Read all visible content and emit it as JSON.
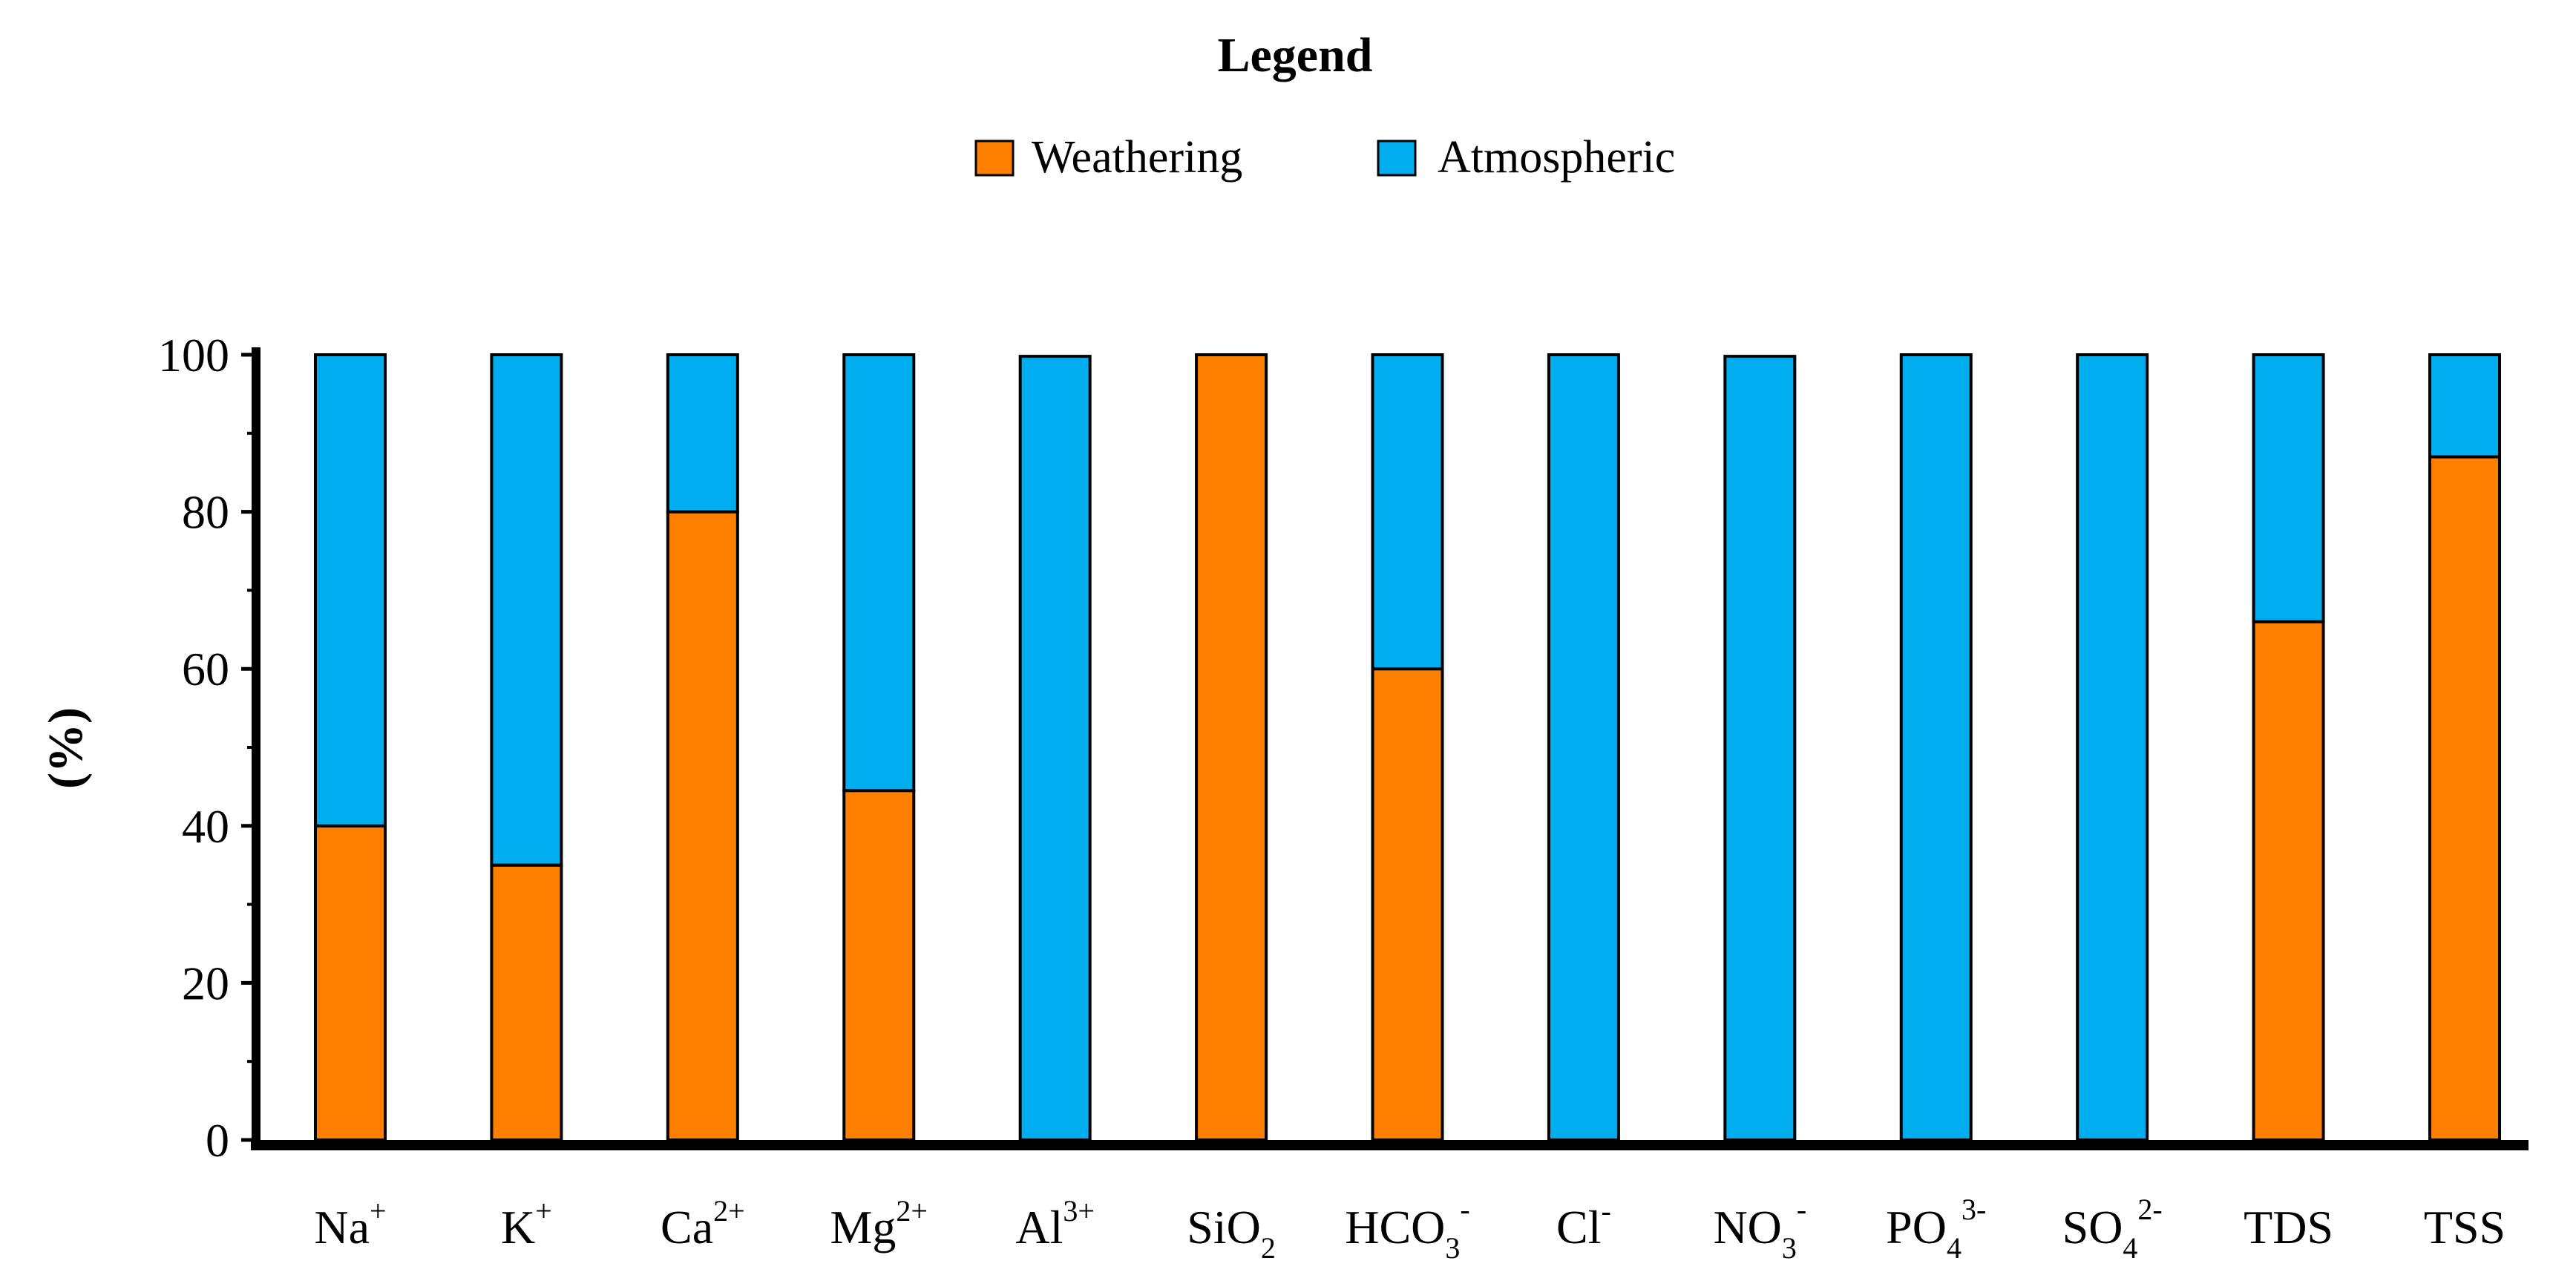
{
  "chart_data": {
    "type": "bar",
    "stacked": true,
    "legend_title": "Legend",
    "ylabel": "(%)",
    "xlabel": "",
    "ylim": [
      0,
      100
    ],
    "yticks": [
      "0",
      "20",
      "40",
      "60",
      "80",
      "100"
    ],
    "legend_position": "top-center",
    "categories": [
      {
        "base": "Na",
        "sup": "+",
        "sub": ""
      },
      {
        "base": "K",
        "sup": "+",
        "sub": ""
      },
      {
        "base": "Ca",
        "sup": "2+",
        "sub": ""
      },
      {
        "base": "Mg",
        "sup": "2+",
        "sub": ""
      },
      {
        "base": "Al",
        "sup": "3+",
        "sub": ""
      },
      {
        "base": "SiO",
        "sup": "",
        "sub": "2"
      },
      {
        "base": "HCO",
        "sup": "-",
        "sub": "3"
      },
      {
        "base": "Cl",
        "sup": "-",
        "sub": ""
      },
      {
        "base": "NO",
        "sup": "-",
        "sub": "3"
      },
      {
        "base": "PO",
        "sup": "3-",
        "sub": "4"
      },
      {
        "base": "SO",
        "sup": "2-",
        "sub": "4"
      },
      {
        "base": "TDS",
        "sup": "",
        "sub": ""
      },
      {
        "base": "TSS",
        "sup": "",
        "sub": ""
      }
    ],
    "series": [
      {
        "name": "Weathering",
        "color": "#FF8000",
        "values": [
          40,
          35,
          80,
          44.5,
          0,
          100,
          60,
          0,
          0,
          0,
          0,
          66,
          87
        ]
      },
      {
        "name": "Atmospheric",
        "color": "#00AEEF",
        "values": [
          60,
          65,
          20,
          55.5,
          99.8,
          0,
          40,
          100,
          99.8,
          100,
          100,
          34,
          13
        ]
      }
    ]
  }
}
